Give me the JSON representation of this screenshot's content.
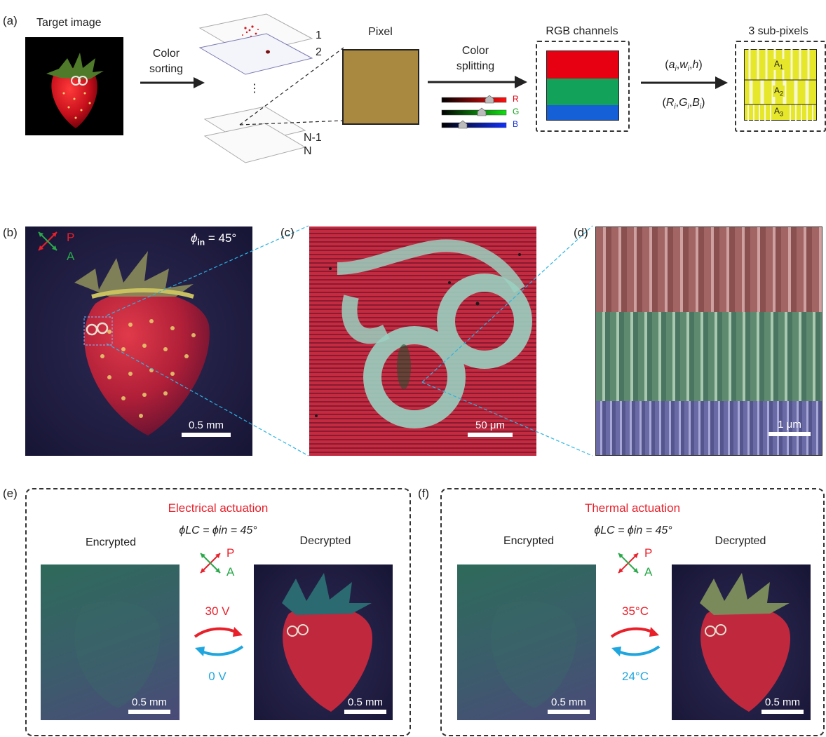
{
  "panels": {
    "a": {
      "label": "(a)",
      "target_title": "Target image",
      "step1": [
        "Color",
        "sorting"
      ],
      "layer_labels": [
        "1",
        "2",
        "⋮",
        "N-1",
        "N"
      ],
      "pixel_title": "Pixel",
      "step2": [
        "Color",
        "splitting"
      ],
      "sliders": [
        "R",
        "G",
        "B"
      ],
      "rgb_title": "RGB channels",
      "params_top": "(a",
      "params_top_full": "(ai,wi,h)",
      "params_bottom_full": "(Ri,Gi,Bi)",
      "subpix_title": "3 sub-pixels",
      "subpix_labels": [
        "A1",
        "A2",
        "A3"
      ],
      "colors": {
        "pixel": "#a9893f",
        "r": "#e60012",
        "g": "#12a25a",
        "b": "#1560d6",
        "sub": "#e6e62b"
      }
    },
    "b": {
      "label": "(b)",
      "phi": "= 45°",
      "phi_sym": "ϕ",
      "phi_sub": "in",
      "P": "P",
      "A": "A",
      "scale": "0.5 mm"
    },
    "c": {
      "label": "(c)",
      "scale": "50 μm"
    },
    "d": {
      "label": "(d)",
      "scale": "1 μm"
    },
    "e": {
      "label": "(e)",
      "title": "Electrical actuation",
      "left": "Encrypted",
      "right": "Decrypted",
      "eq": "ϕLC = ϕin = 45°",
      "P": "P",
      "A": "A",
      "forward": "30 V",
      "backward": "0 V",
      "scale": "0.5 mm"
    },
    "f": {
      "label": "(f)",
      "title": "Thermal actuation",
      "left": "Encrypted",
      "right": "Decrypted",
      "eq": "ϕLC = ϕin = 45°",
      "P": "P",
      "A": "A",
      "forward": "35°C",
      "backward": "24°C",
      "scale": "0.5 mm"
    }
  }
}
